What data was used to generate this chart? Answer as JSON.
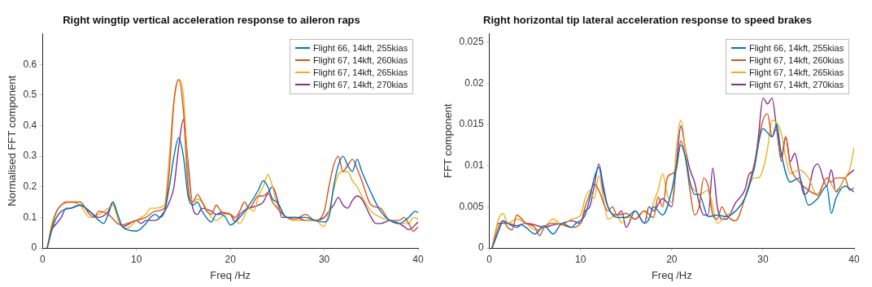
{
  "chart_data": [
    {
      "type": "line",
      "title": "Right wingtip vertical acceleration response to aileron raps",
      "xlabel": "Freq /Hz",
      "ylabel": "Normalised FFT component",
      "xlim": [
        0,
        40
      ],
      "xticks": [
        0,
        10,
        20,
        30,
        40
      ],
      "ylim": [
        0,
        0.7
      ],
      "yticks": [
        0,
        0.1,
        0.2,
        0.3,
        0.4,
        0.5,
        0.6
      ],
      "grid": false,
      "legend": "top right",
      "marker": "none",
      "line_style": "solid",
      "series": [
        {
          "name": "Flight 66, 14kft, 255kias",
          "color": "#0072bd",
          "x": [
            0.5,
            1,
            1.5,
            2,
            3,
            4,
            5,
            6,
            6.5,
            7,
            7.5,
            8,
            8.5,
            9,
            10,
            11,
            11.5,
            12,
            12.5,
            13,
            13.5,
            14,
            14.5,
            15,
            15.5,
            16,
            16.5,
            17,
            18,
            18.5,
            19,
            19.5,
            20,
            21,
            22,
            23,
            23.5,
            24,
            24.5,
            25,
            26,
            27,
            28,
            29,
            30,
            30.5,
            31,
            31.5,
            32,
            32.5,
            33,
            33.5,
            34,
            35,
            36,
            37,
            38,
            39,
            39.7,
            40
          ],
          "values": [
            0,
            0.06,
            0.1,
            0.12,
            0.13,
            0.14,
            0.12,
            0.09,
            0.08,
            0.11,
            0.15,
            0.11,
            0.07,
            0.06,
            0.055,
            0.08,
            0.1,
            0.11,
            0.1,
            0.12,
            0.2,
            0.3,
            0.36,
            0.3,
            0.17,
            0.14,
            0.15,
            0.12,
            0.085,
            0.11,
            0.11,
            0.1,
            0.075,
            0.1,
            0.14,
            0.19,
            0.22,
            0.2,
            0.16,
            0.15,
            0.1,
            0.1,
            0.1,
            0.09,
            0.085,
            0.1,
            0.2,
            0.27,
            0.3,
            0.27,
            0.25,
            0.29,
            0.25,
            0.18,
            0.12,
            0.09,
            0.08,
            0.1,
            0.12,
            0.115
          ]
        },
        {
          "name": "Flight 67, 14kft, 260kias",
          "color": "#d95319",
          "x": [
            0.5,
            1,
            1.5,
            2,
            2.5,
            3,
            4,
            5,
            5.5,
            6,
            7,
            8,
            8.5,
            9,
            10,
            11,
            12,
            13,
            13.5,
            14,
            14.5,
            15,
            15.5,
            16,
            16.5,
            17,
            17.5,
            18,
            18.5,
            19,
            20,
            20.5,
            21,
            21.5,
            22,
            23,
            23.5,
            24,
            24.5,
            25,
            26,
            27,
            28,
            29,
            30,
            30.5,
            31,
            31.5,
            32,
            32.5,
            33,
            33.5,
            34,
            35,
            36,
            37,
            38,
            38.5,
            39,
            39.5,
            40
          ],
          "values": [
            0,
            0.07,
            0.12,
            0.14,
            0.15,
            0.15,
            0.15,
            0.11,
            0.1,
            0.12,
            0.11,
            0.08,
            0.075,
            0.08,
            0.09,
            0.1,
            0.12,
            0.13,
            0.25,
            0.48,
            0.55,
            0.45,
            0.2,
            0.15,
            0.175,
            0.15,
            0.12,
            0.11,
            0.14,
            0.12,
            0.11,
            0.1,
            0.12,
            0.15,
            0.13,
            0.17,
            0.17,
            0.18,
            0.15,
            0.13,
            0.1,
            0.095,
            0.11,
            0.09,
            0.12,
            0.2,
            0.27,
            0.3,
            0.25,
            0.27,
            0.29,
            0.26,
            0.22,
            0.14,
            0.13,
            0.09,
            0.09,
            0.1,
            0.08,
            0.055,
            0.07
          ]
        },
        {
          "name": "Flight 67, 14kft, 265kias",
          "color": "#edb120",
          "x": [
            0.5,
            1,
            1.5,
            2,
            3,
            4,
            5,
            6,
            7,
            7.5,
            8,
            8.5,
            9,
            10,
            11,
            11.5,
            12,
            13,
            13.5,
            14,
            14.5,
            15,
            15.5,
            16,
            16.5,
            17,
            18,
            18.5,
            19,
            19.5,
            20,
            21,
            22,
            22.5,
            23,
            23.5,
            24,
            24.5,
            25,
            26,
            27,
            28,
            29,
            30,
            30.5,
            31,
            31.5,
            32,
            32.5,
            33,
            33.5,
            34,
            35,
            36,
            37,
            38,
            39,
            39.5,
            40
          ],
          "values": [
            0,
            0.08,
            0.12,
            0.14,
            0.15,
            0.14,
            0.1,
            0.11,
            0.13,
            0.14,
            0.1,
            0.07,
            0.065,
            0.09,
            0.11,
            0.13,
            0.13,
            0.14,
            0.3,
            0.48,
            0.55,
            0.5,
            0.25,
            0.15,
            0.16,
            0.15,
            0.1,
            0.09,
            0.1,
            0.11,
            0.11,
            0.08,
            0.13,
            0.12,
            0.17,
            0.2,
            0.24,
            0.2,
            0.14,
            0.1,
            0.09,
            0.09,
            0.09,
            0.07,
            0.12,
            0.19,
            0.24,
            0.25,
            0.25,
            0.22,
            0.2,
            0.17,
            0.12,
            0.1,
            0.09,
            0.08,
            0.08,
            0.1,
            0.095
          ]
        },
        {
          "name": "Flight 67, 14kft, 270kias",
          "color": "#7e2f8e",
          "x": [
            0.5,
            1,
            1.5,
            2,
            2.5,
            3,
            4,
            5,
            6,
            7,
            7.5,
            8,
            8.5,
            9,
            10,
            10.5,
            11,
            12,
            13,
            13.5,
            14,
            14.5,
            15,
            15.5,
            16,
            16.5,
            17,
            18,
            18.5,
            19,
            20,
            20.5,
            21,
            22,
            23,
            23.5,
            24,
            24.5,
            25,
            25.5,
            26,
            27,
            28,
            29,
            30,
            30.5,
            31,
            31.5,
            32,
            32.5,
            33,
            33.5,
            34,
            35,
            35.5,
            36,
            37,
            38,
            38.5,
            39,
            40
          ],
          "values": [
            0,
            0.06,
            0.08,
            0.1,
            0.13,
            0.13,
            0.14,
            0.12,
            0.1,
            0.12,
            0.15,
            0.1,
            0.07,
            0.075,
            0.09,
            0.08,
            0.09,
            0.09,
            0.12,
            0.15,
            0.2,
            0.33,
            0.42,
            0.28,
            0.13,
            0.11,
            0.13,
            0.12,
            0.11,
            0.115,
            0.11,
            0.085,
            0.11,
            0.13,
            0.14,
            0.15,
            0.18,
            0.2,
            0.16,
            0.1,
            0.1,
            0.1,
            0.09,
            0.09,
            0.1,
            0.12,
            0.14,
            0.165,
            0.14,
            0.13,
            0.155,
            0.17,
            0.16,
            0.1,
            0.08,
            0.08,
            0.09,
            0.08,
            0.07,
            0.06,
            0.085
          ]
        }
      ]
    },
    {
      "type": "line",
      "title": "Right horizontal tip lateral acceleration response to speed brakes",
      "xlabel": "Freq /Hz",
      "ylabel": "FFT component",
      "xlim": [
        0,
        40
      ],
      "xticks": [
        0,
        10,
        20,
        30,
        40
      ],
      "ylim": [
        0,
        0.026
      ],
      "yticks": [
        0,
        0.005,
        0.01,
        0.015,
        0.02,
        0.025
      ],
      "grid": false,
      "legend": "top right",
      "marker": "none",
      "line_style": "solid",
      "series": [
        {
          "name": "Flight 66, 14kft, 255kias",
          "color": "#0072bd",
          "x": [
            0.3,
            1,
            1.5,
            2,
            3,
            3.5,
            4,
            5,
            6,
            7,
            8,
            9,
            9.5,
            10.5,
            11,
            11.5,
            12,
            12.5,
            13,
            14,
            15,
            16,
            17,
            17.5,
            18,
            19,
            20,
            20.5,
            21,
            21.5,
            22,
            22.5,
            23,
            24,
            25,
            26,
            27,
            28,
            29,
            30,
            30.5,
            31,
            31.5,
            32,
            33,
            34,
            35,
            36,
            37,
            37.5,
            38,
            39,
            40
          ],
          "values": [
            0,
            0.002,
            0.0033,
            0.003,
            0.0025,
            0.0028,
            0.0025,
            0.0017,
            0.0027,
            0.0017,
            0.003,
            0.0025,
            0.003,
            0.004,
            0.006,
            0.0085,
            0.0098,
            0.007,
            0.005,
            0.0037,
            0.0037,
            0.0045,
            0.003,
            0.0035,
            0.005,
            0.004,
            0.007,
            0.01,
            0.0125,
            0.011,
            0.008,
            0.0065,
            0.0065,
            0.0038,
            0.004,
            0.0038,
            0.0045,
            0.006,
            0.0095,
            0.0145,
            0.014,
            0.0135,
            0.015,
            0.0115,
            0.008,
            0.0085,
            0.0052,
            0.006,
            0.0075,
            0.0042,
            0.006,
            0.0075,
            0.0068
          ]
        },
        {
          "name": "Flight 67, 14kft, 260kias",
          "color": "#d95319",
          "x": [
            0.3,
            1,
            1.5,
            2,
            2.5,
            3,
            4,
            5,
            5.5,
            6,
            7,
            8,
            9,
            10,
            10.5,
            11,
            11.5,
            12,
            13,
            13.5,
            14,
            15,
            16,
            17,
            18,
            18.5,
            19,
            19.5,
            20,
            20.5,
            21,
            21.5,
            22,
            22.5,
            23,
            23.5,
            24,
            24.5,
            25,
            25.5,
            26,
            27,
            28,
            29,
            30,
            30.5,
            31,
            31.5,
            32,
            32.5,
            33,
            34,
            35,
            36,
            37,
            37.5,
            38,
            39,
            39.5,
            40
          ],
          "values": [
            0,
            0.0025,
            0.0033,
            0.0025,
            0.0022,
            0.004,
            0.003,
            0.0025,
            0.0015,
            0.0025,
            0.003,
            0.0028,
            0.0025,
            0.003,
            0.005,
            0.0065,
            0.0078,
            0.007,
            0.0045,
            0.005,
            0.004,
            0.0042,
            0.0035,
            0.0045,
            0.0037,
            0.0062,
            0.005,
            0.0085,
            0.009,
            0.0095,
            0.013,
            0.011,
            0.007,
            0.004,
            0.005,
            0.0085,
            0.0075,
            0.004,
            0.0035,
            0.005,
            0.004,
            0.0033,
            0.006,
            0.01,
            0.0155,
            0.0163,
            0.0135,
            0.0145,
            0.0105,
            0.0135,
            0.01,
            0.008,
            0.007,
            0.0065,
            0.0085,
            0.008,
            0.0085,
            0.0085,
            0.007,
            0.0073
          ]
        },
        {
          "name": "Flight 67, 14kft, 265kias",
          "color": "#edb120",
          "x": [
            0.3,
            1,
            1.5,
            2,
            3,
            4,
            5,
            6,
            7,
            8,
            9,
            10,
            10.5,
            11,
            11.5,
            12,
            12.5,
            13,
            14,
            14.5,
            15,
            16,
            17,
            17.5,
            18,
            18.5,
            19,
            19.5,
            20,
            20.5,
            21,
            21.5,
            22,
            22.5,
            23,
            24,
            25,
            26,
            27,
            28,
            29,
            29.5,
            30,
            30.5,
            31,
            32,
            32.5,
            33,
            34,
            35,
            36,
            37,
            38,
            39,
            39.5,
            40
          ],
          "values": [
            0,
            0.0035,
            0.0042,
            0.003,
            0.0035,
            0.003,
            0.0022,
            0.0025,
            0.0035,
            0.0028,
            0.0035,
            0.004,
            0.006,
            0.007,
            0.006,
            0.0088,
            0.006,
            0.0035,
            0.004,
            0.003,
            0.0038,
            0.0035,
            0.0045,
            0.0035,
            0.0055,
            0.007,
            0.009,
            0.0065,
            0.0055,
            0.012,
            0.0155,
            0.012,
            0.008,
            0.007,
            0.0065,
            0.007,
            0.003,
            0.004,
            0.0045,
            0.006,
            0.0085,
            0.0085,
            0.0095,
            0.012,
            0.0155,
            0.014,
            0.011,
            0.009,
            0.0095,
            0.0085,
            0.0063,
            0.0085,
            0.007,
            0.0085,
            0.0095,
            0.0122
          ]
        },
        {
          "name": "Flight 67, 14kft, 270kias",
          "color": "#7e2f8e",
          "x": [
            0.3,
            1,
            1.5,
            2,
            3,
            4,
            5,
            6,
            7,
            8,
            9,
            10,
            10.5,
            11,
            11.5,
            12,
            12.5,
            13,
            14,
            14.5,
            15,
            16,
            17,
            17.5,
            18,
            19,
            19.5,
            20,
            20.5,
            21,
            21.5,
            22,
            22.5,
            23,
            23.5,
            24,
            24.5,
            25,
            25.5,
            26,
            27,
            28,
            28.5,
            29,
            29.5,
            30,
            30.5,
            31,
            31.5,
            32,
            32.5,
            33,
            33.5,
            34,
            34.5,
            35,
            35.5,
            36,
            37,
            37.5,
            38,
            39,
            40
          ],
          "values": [
            0,
            0.003,
            0.003,
            0.003,
            0.0027,
            0.003,
            0.0028,
            0.0025,
            0.0028,
            0.003,
            0.0033,
            0.003,
            0.0045,
            0.005,
            0.0075,
            0.0102,
            0.0075,
            0.005,
            0.004,
            0.0045,
            0.0025,
            0.0045,
            0.003,
            0.005,
            0.0045,
            0.006,
            0.0055,
            0.005,
            0.01,
            0.0148,
            0.012,
            0.0095,
            0.008,
            0.0055,
            0.004,
            0.004,
            0.0097,
            0.005,
            0.0035,
            0.0035,
            0.0055,
            0.007,
            0.009,
            0.0095,
            0.0135,
            0.0182,
            0.0175,
            0.0182,
            0.0145,
            0.011,
            0.0135,
            0.0105,
            0.0115,
            0.009,
            0.0065,
            0.007,
            0.0095,
            0.0102,
            0.0075,
            0.0095,
            0.0068,
            0.0085,
            0.0095
          ]
        }
      ]
    }
  ]
}
